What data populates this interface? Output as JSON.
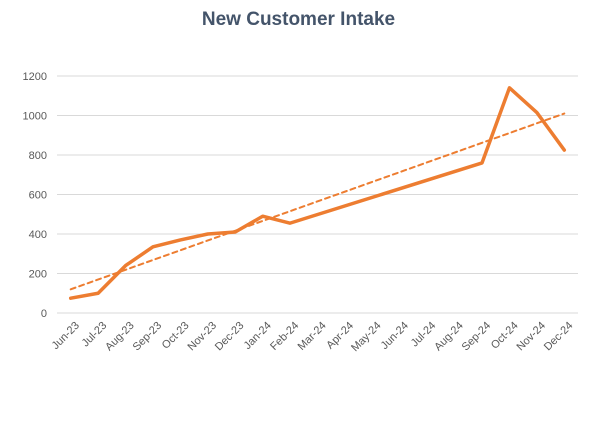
{
  "chart_data": {
    "type": "line",
    "title": "New Customer Intake",
    "xlabel": "",
    "ylabel": "",
    "categories": [
      "Jun-23",
      "Jul-23",
      "Aug-23",
      "Sep-23",
      "Oct-23",
      "Nov-23",
      "Dec-23",
      "Jan-24",
      "Feb-24",
      "Mar-24",
      "Apr-24",
      "May-24",
      "Jun-24",
      "Jul-24",
      "Aug-24",
      "Sep-24",
      "Oct-24",
      "Nov-24",
      "Dec-24"
    ],
    "series": [
      {
        "values": [
          75,
          100,
          240,
          335,
          370,
          400,
          410,
          490,
          455,
          null,
          null,
          null,
          null,
          null,
          null,
          760,
          1140,
          1015,
          825
        ],
        "color": "#ed7d31",
        "style": "solid"
      },
      {
        "values": [
          120,
          null,
          null,
          null,
          null,
          null,
          null,
          null,
          null,
          null,
          null,
          null,
          null,
          null,
          null,
          null,
          null,
          null,
          1010
        ],
        "color": "#ed7d31",
        "style": "dashed",
        "kind": "linear trendline"
      }
    ],
    "ylim": [
      0,
      1200
    ],
    "yticks": [
      0,
      200,
      400,
      600,
      800,
      1000,
      1200
    ],
    "grid": true,
    "legend": "none"
  }
}
